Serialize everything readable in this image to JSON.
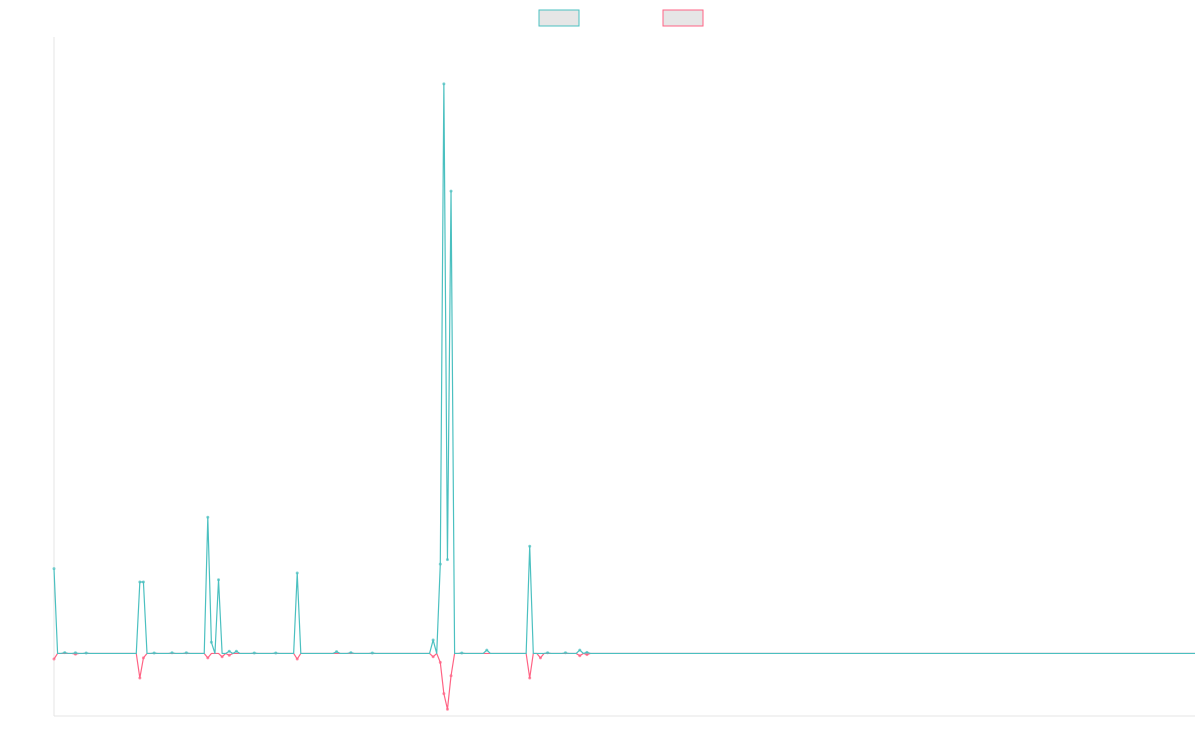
{
  "chart_data": {
    "type": "line",
    "title": "",
    "xlabel": "",
    "ylabel": "",
    "legend_position": "top-center",
    "grid": false,
    "x_range": [
      0,
      319
    ],
    "ylim": [
      -28,
      276
    ],
    "baseline": 0,
    "series": [
      {
        "color": "#4bc0c0",
        "legend_fill": "#e6e6e6",
        "direction": "up",
        "peaks": [
          {
            "x": 0,
            "y": 38
          },
          {
            "x": 3,
            "y": 0.4
          },
          {
            "x": 6,
            "y": 0.3
          },
          {
            "x": 9,
            "y": 0.2
          },
          {
            "x": 24,
            "y": 32
          },
          {
            "x": 25,
            "y": 32
          },
          {
            "x": 28,
            "y": 0.2
          },
          {
            "x": 33,
            "y": 0.3
          },
          {
            "x": 37,
            "y": 0.3
          },
          {
            "x": 43,
            "y": 61
          },
          {
            "x": 44,
            "y": 5
          },
          {
            "x": 46,
            "y": 33
          },
          {
            "x": 49,
            "y": 1
          },
          {
            "x": 51,
            "y": 1
          },
          {
            "x": 56,
            "y": 0.2
          },
          {
            "x": 62,
            "y": 0.2
          },
          {
            "x": 68,
            "y": 36
          },
          {
            "x": 79,
            "y": 0.8
          },
          {
            "x": 83,
            "y": 0.4
          },
          {
            "x": 89,
            "y": 0.2
          },
          {
            "x": 106,
            "y": 6
          },
          {
            "x": 108,
            "y": 40
          },
          {
            "x": 109,
            "y": 255
          },
          {
            "x": 110,
            "y": 42
          },
          {
            "x": 111,
            "y": 207
          },
          {
            "x": 114,
            "y": 0.2
          },
          {
            "x": 121,
            "y": 1.5
          },
          {
            "x": 133,
            "y": 48
          },
          {
            "x": 138,
            "y": 0.3
          },
          {
            "x": 143,
            "y": 0.3
          },
          {
            "x": 147,
            "y": 1.5
          },
          {
            "x": 149,
            "y": 0.5
          }
        ]
      },
      {
        "color": "#ff6384",
        "legend_fill": "#e6e6e6",
        "direction": "down",
        "peaks": [
          {
            "x": 0,
            "y": 2.5
          },
          {
            "x": 6,
            "y": 0.3
          },
          {
            "x": 24,
            "y": 11
          },
          {
            "x": 25,
            "y": 2
          },
          {
            "x": 43,
            "y": 2
          },
          {
            "x": 47,
            "y": 1.5
          },
          {
            "x": 49,
            "y": 0.8
          },
          {
            "x": 68,
            "y": 2.5
          },
          {
            "x": 106,
            "y": 1.5
          },
          {
            "x": 108,
            "y": 4
          },
          {
            "x": 109,
            "y": 18
          },
          {
            "x": 110,
            "y": 25
          },
          {
            "x": 111,
            "y": 10
          },
          {
            "x": 133,
            "y": 11
          },
          {
            "x": 136,
            "y": 2
          },
          {
            "x": 147,
            "y": 1
          },
          {
            "x": 149,
            "y": 0.5
          }
        ]
      }
    ]
  }
}
